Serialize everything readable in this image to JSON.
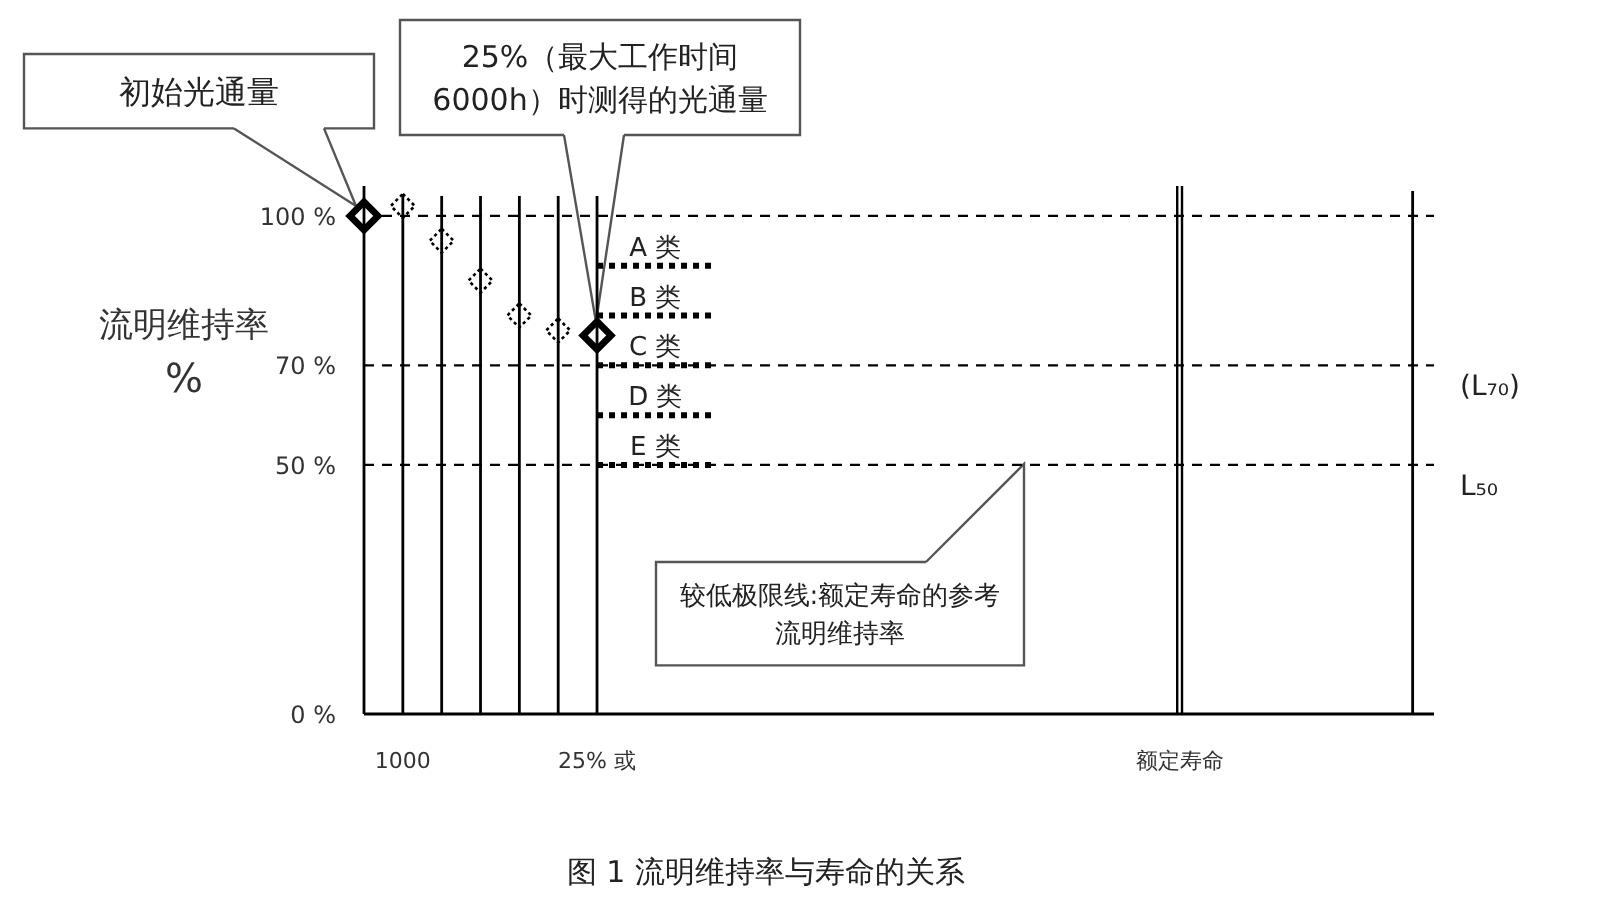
{
  "chart_data": {
    "type": "scatter",
    "title": "图 1 流明维持率与寿命的关系",
    "ylabel": "流明维持率\n%",
    "marker": "diamond",
    "categories": [
      null,
      "1000",
      null,
      null,
      null,
      null,
      "25% 或",
      null,
      null,
      null,
      null,
      null,
      null,
      null,
      null,
      null,
      null,
      null,
      null,
      null,
      null,
      "额定寿命",
      null,
      null,
      null,
      null,
      null,
      null
    ],
    "ylim": [
      0,
      106
    ],
    "yticks": [
      {
        "value": 0,
        "label": "0 %"
      },
      {
        "value": 50,
        "label": "50 %"
      },
      {
        "value": 70,
        "label": "70 %"
      },
      {
        "value": 100,
        "label": "100 %"
      }
    ],
    "series": [
      {
        "type": "bar",
        "color": "#000000",
        "values": [
          null,
          104,
          104,
          104,
          104,
          104,
          104,
          null,
          null,
          null,
          null,
          null,
          null,
          null,
          null,
          null,
          null,
          null,
          null,
          null,
          null,
          null,
          null,
          null,
          null,
          null,
          null,
          105
        ]
      },
      {
        "color": "#000000",
        "line_style": "solid",
        "values": [
          100,
          null,
          null,
          null,
          null,
          null,
          76,
          null,
          null,
          null,
          null,
          null,
          null,
          null,
          null,
          null,
          null,
          null,
          null,
          null,
          null,
          null,
          null,
          null,
          null,
          null,
          null,
          null
        ]
      },
      {
        "color": "#000000",
        "line_style": "dotted",
        "values": [
          null,
          102,
          95,
          87,
          80,
          77,
          null,
          null,
          null,
          null,
          null,
          null,
          null,
          null,
          null,
          null,
          null,
          null,
          null,
          null,
          null,
          null,
          null,
          null,
          null,
          null,
          null,
          null
        ]
      },
      {
        "type": "line",
        "name": "A 类",
        "color": "#000000",
        "line_style": "dotted",
        "marker": "none",
        "values": [
          null,
          null,
          null,
          null,
          null,
          null,
          90,
          90,
          90,
          90,
          null,
          null,
          null,
          null,
          null,
          null,
          null,
          null,
          null,
          null,
          null,
          null,
          null,
          null,
          null,
          null,
          null,
          null
        ]
      },
      {
        "type": "line",
        "name": "B 类",
        "color": "#000000",
        "line_style": "dotted",
        "marker": "none",
        "values": [
          null,
          null,
          null,
          null,
          null,
          null,
          80,
          80,
          80,
          80,
          null,
          null,
          null,
          null,
          null,
          null,
          null,
          null,
          null,
          null,
          null,
          null,
          null,
          null,
          null,
          null,
          null,
          null
        ]
      },
      {
        "type": "line",
        "name": "C 类",
        "color": "#000000",
        "line_style": "dotted",
        "marker": "none",
        "values": [
          null,
          null,
          null,
          null,
          null,
          null,
          70,
          70,
          70,
          70,
          null,
          null,
          null,
          null,
          null,
          null,
          null,
          null,
          null,
          null,
          null,
          null,
          null,
          null,
          null,
          null,
          null,
          null
        ]
      },
      {
        "type": "line",
        "name": "D 类",
        "color": "#000000",
        "line_style": "dotted",
        "marker": "none",
        "values": [
          null,
          null,
          null,
          null,
          null,
          null,
          60,
          60,
          60,
          60,
          null,
          null,
          null,
          null,
          null,
          null,
          null,
          null,
          null,
          null,
          null,
          null,
          null,
          null,
          null,
          null,
          null,
          null
        ]
      },
      {
        "type": "line",
        "name": "E 类",
        "color": "#000000",
        "line_style": "dotted",
        "marker": "none",
        "values": [
          null,
          null,
          null,
          null,
          null,
          null,
          50,
          50,
          50,
          50,
          null,
          null,
          null,
          null,
          null,
          null,
          null,
          null,
          null,
          null,
          null,
          null,
          null,
          null,
          null,
          null,
          null,
          null
        ]
      }
    ],
    "ref_lines": [
      {
        "axis": "y",
        "value": 100,
        "line_style": "dashed",
        "color": "#000000"
      },
      {
        "axis": "y",
        "value": 70,
        "label": "(L₇₀)",
        "line_style": "dashed",
        "color": "#000000"
      },
      {
        "axis": "y",
        "value": 50,
        "label": "L₅₀",
        "line_style": "dashed",
        "color": "#000000"
      },
      {
        "axis": "x",
        "value": "额定寿命",
        "line_style": "solid",
        "color": "#000000"
      }
    ],
    "annotations": [
      "初始光通量",
      "25%（最大工作时间 6000h）时测得的光通量",
      "较低极限线:额定寿命的参考流明维持率"
    ]
  }
}
